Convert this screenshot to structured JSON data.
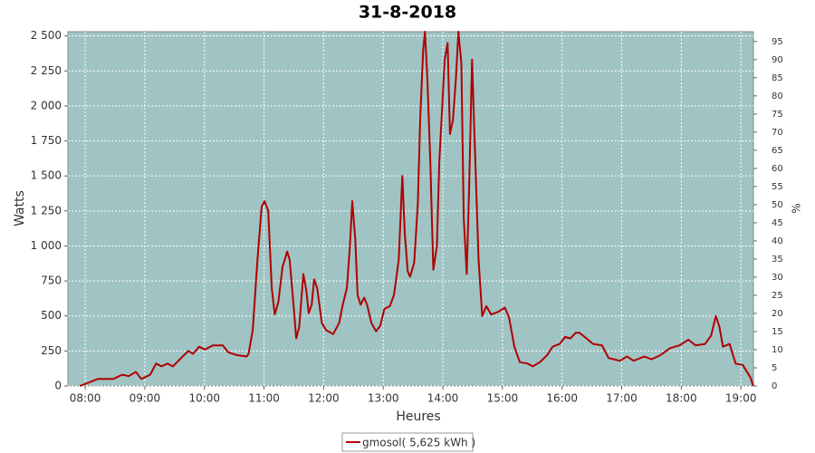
{
  "chart_data": {
    "type": "line",
    "title": "31-8-2018",
    "xlabel": "Heures",
    "ylabel": "Watts",
    "y2label": "%",
    "x": [
      7.91,
      8.09,
      8.21,
      8.47,
      8.62,
      8.73,
      8.85,
      8.94,
      9.09,
      9.19,
      9.28,
      9.38,
      9.47,
      9.61,
      9.73,
      9.81,
      9.91,
      10.01,
      10.14,
      10.31,
      10.4,
      10.55,
      10.71,
      10.74,
      10.81,
      10.89,
      10.96,
      11.01,
      11.07,
      11.13,
      11.18,
      11.24,
      11.31,
      11.39,
      11.43,
      11.5,
      11.54,
      11.59,
      11.66,
      11.71,
      11.75,
      11.8,
      11.84,
      11.89,
      11.97,
      12.04,
      12.16,
      12.26,
      12.32,
      12.39,
      12.44,
      12.48,
      12.53,
      12.57,
      12.62,
      12.68,
      12.73,
      12.8,
      12.88,
      12.95,
      13.02,
      13.11,
      13.18,
      13.26,
      13.32,
      13.36,
      13.41,
      13.45,
      13.52,
      13.58,
      13.62,
      13.67,
      13.7,
      13.74,
      13.79,
      13.84,
      13.9,
      13.94,
      13.99,
      14.03,
      14.08,
      14.12,
      14.17,
      14.22,
      14.26,
      14.31,
      14.35,
      14.4,
      14.44,
      14.49,
      14.53,
      14.6,
      14.66,
      14.73,
      14.81,
      14.93,
      15.04,
      15.11,
      15.2,
      15.29,
      15.42,
      15.51,
      15.63,
      15.75,
      15.84,
      15.96,
      16.05,
      16.14,
      16.23,
      16.29,
      16.41,
      16.52,
      16.67,
      16.78,
      16.97,
      17.09,
      17.2,
      17.38,
      17.5,
      17.65,
      17.81,
      17.97,
      18.12,
      18.24,
      18.4,
      18.5,
      18.58,
      18.64,
      18.7,
      18.81,
      18.91,
      19.03,
      19.16,
      19.19,
      19.21
    ],
    "series": [
      {
        "name": "gmosol( 5,625 kWh )",
        "color": "#b00000",
        "values": [
          0,
          30,
          50,
          50,
          80,
          70,
          100,
          50,
          80,
          160,
          140,
          160,
          140,
          200,
          250,
          230,
          280,
          260,
          290,
          290,
          240,
          220,
          210,
          230,
          400,
          900,
          1280,
          1320,
          1250,
          700,
          510,
          600,
          850,
          960,
          900,
          550,
          340,
          420,
          800,
          680,
          520,
          580,
          760,
          700,
          450,
          400,
          370,
          450,
          580,
          700,
          1000,
          1320,
          1050,
          650,
          580,
          630,
          580,
          450,
          390,
          430,
          550,
          570,
          650,
          900,
          1500,
          1100,
          820,
          780,
          880,
          1300,
          1900,
          2400,
          2530,
          2200,
          1600,
          830,
          1000,
          1600,
          2000,
          2330,
          2450,
          1800,
          1900,
          2200,
          2530,
          2300,
          1200,
          800,
          1400,
          2330,
          1800,
          900,
          500,
          570,
          510,
          530,
          560,
          490,
          280,
          170,
          160,
          140,
          170,
          220,
          280,
          300,
          350,
          340,
          380,
          380,
          340,
          300,
          290,
          200,
          180,
          210,
          180,
          210,
          190,
          220,
          270,
          290,
          330,
          290,
          300,
          360,
          500,
          420,
          280,
          300,
          160,
          150,
          60,
          20,
          0
        ]
      }
    ],
    "xlim": [
      7.71,
      19.21
    ],
    "xticks": [
      {
        "value": 8,
        "label": "08:00"
      },
      {
        "value": 9,
        "label": "09:00"
      },
      {
        "value": 10,
        "label": "10:00"
      },
      {
        "value": 11,
        "label": "11:00"
      },
      {
        "value": 12,
        "label": "12:00"
      },
      {
        "value": 13,
        "label": "13:00"
      },
      {
        "value": 14,
        "label": "14:00"
      },
      {
        "value": 15,
        "label": "15:00"
      },
      {
        "value": 16,
        "label": "16:00"
      },
      {
        "value": 17,
        "label": "17:00"
      },
      {
        "value": 18,
        "label": "18:00"
      },
      {
        "value": 19,
        "label": "19:00"
      }
    ],
    "ylim": [
      0,
      2530
    ],
    "yticks": [
      0,
      250,
      500,
      750,
      {
        "value": 1000,
        "label": "1 000"
      },
      {
        "value": 1250,
        "label": "1 250"
      },
      {
        "value": 1500,
        "label": "1 500"
      },
      {
        "value": 1750,
        "label": "1 750"
      },
      {
        "value": 2000,
        "label": "2 000"
      },
      {
        "value": 2250,
        "label": "2 250"
      },
      {
        "value": 2500,
        "label": "2 500"
      }
    ],
    "y2lim": [
      0,
      97.7
    ],
    "y2ticks": [
      0,
      5,
      10,
      15,
      20,
      25,
      30,
      35,
      40,
      45,
      50,
      55,
      60,
      65,
      70,
      75,
      80,
      85,
      90,
      95
    ],
    "grid": true,
    "plot_background": "#a0c4c4"
  }
}
